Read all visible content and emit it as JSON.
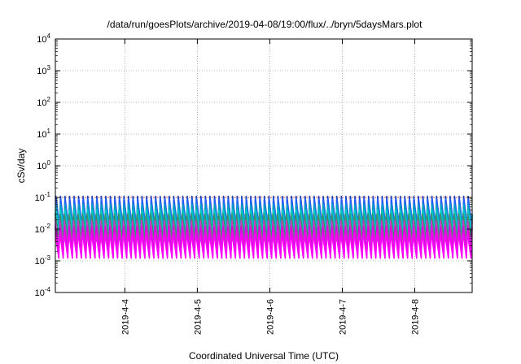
{
  "chart_data": {
    "type": "line",
    "title": "/data/run/goesPlots/archive/2019-04-08/19:00/flux/../bryn/5daysMars.plot",
    "xlabel": "Coordinated Universal Time (UTC)",
    "ylabel": "cSv/day",
    "x_range": [
      "2019-04-03T01:00",
      "2019-04-08T19:00"
    ],
    "x_ticks": [
      "2019-4-4",
      "2019-4-5",
      "2019-4-6",
      "2019-4-7",
      "2019-4-8"
    ],
    "y_scale": "log",
    "ylim": [
      0.0001,
      10000
    ],
    "y_ticks": [
      {
        "base": "10",
        "exp": "4"
      },
      {
        "base": "10",
        "exp": "3"
      },
      {
        "base": "10",
        "exp": "2"
      },
      {
        "base": "10",
        "exp": "1"
      },
      {
        "base": "10",
        "exp": "0"
      },
      {
        "base": "10",
        "exp": "-1"
      },
      {
        "base": "10",
        "exp": "-2"
      },
      {
        "base": "10",
        "exp": "-3"
      },
      {
        "base": "10",
        "exp": "-4"
      }
    ],
    "grid": true,
    "legend": "none",
    "reference_line": {
      "y": 0.1,
      "color": "#d62728"
    },
    "oscillation_period_hours": 1.5,
    "series": [
      {
        "color": "#1f3fbf",
        "peak": 0.11,
        "trough": 0.009
      },
      {
        "color": "#2060ff",
        "peak": 0.095,
        "trough": 0.012
      },
      {
        "color": "#00a0c0",
        "peak": 0.07,
        "trough": 0.01
      },
      {
        "color": "#00c8c8",
        "peak": 0.05,
        "trough": 0.006
      },
      {
        "color": "#3f8f6f",
        "peak": 0.03,
        "trough": 0.004
      },
      {
        "color": "#c040c0",
        "peak": 0.02,
        "trough": 0.0025
      },
      {
        "color": "#e000e0",
        "peak": 0.014,
        "trough": 0.0015
      },
      {
        "color": "#ff00ff",
        "peak": 0.009,
        "trough": 0.0011
      }
    ]
  }
}
